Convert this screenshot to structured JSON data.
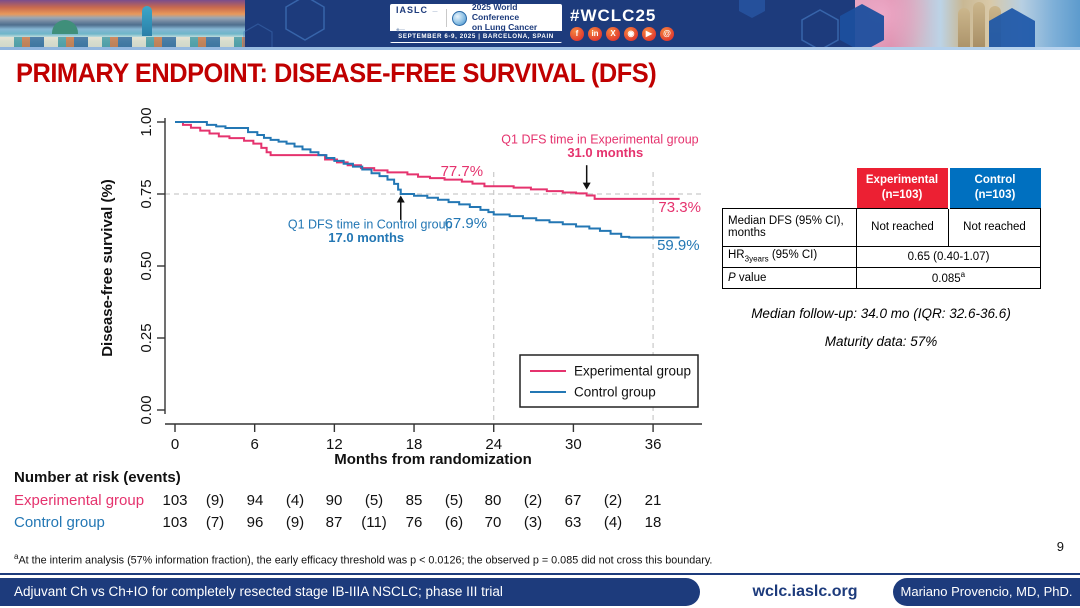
{
  "header": {
    "iaslc_logo": "IASLC",
    "conference_title_line1": "2025 World Conference",
    "conference_title_line2": "on Lung Cancer",
    "date_location": "SEPTEMBER 6-9, 2025   |   BARCELONA, SPAIN",
    "hashtag": "#WCLC25",
    "social_icons": [
      {
        "name": "facebook-icon",
        "glyph": "f"
      },
      {
        "name": "linkedin-icon",
        "glyph": "in"
      },
      {
        "name": "x-icon",
        "glyph": "X"
      },
      {
        "name": "instagram-icon",
        "glyph": "◉"
      },
      {
        "name": "youtube-icon",
        "glyph": "▶"
      },
      {
        "name": "threads-icon",
        "glyph": "@"
      }
    ]
  },
  "slide": {
    "title": "PRIMARY ENDPOINT: DISEASE-FREE SURVIVAL (DFS)",
    "page_number": "9",
    "footnote_sup": "a",
    "footnote": "At the interim analysis (57% information fraction), the early efficacy threshold was p < 0.0126; the observed p = 0.085 did not cross this boundary."
  },
  "chart_data": {
    "type": "line",
    "subtype": "kaplan-meier-step",
    "title": "",
    "xlabel": "Months from randomization",
    "ylabel": "Disease-free survival (%)",
    "xlim": [
      0,
      38.5
    ],
    "ylim": [
      0,
      1
    ],
    "x_ticks": [
      0,
      6,
      12,
      18,
      24,
      30,
      36
    ],
    "y_ticks": [
      0,
      0.25,
      0.5,
      0.75,
      1
    ],
    "y_tick_labels": [
      "0.00",
      "0.25",
      "0.50",
      "0.75",
      "1.00"
    ],
    "grid": false,
    "reference_lines": {
      "horizontal_y": 0.75,
      "vertical_x": [
        24,
        36
      ]
    },
    "legend": {
      "position": "bottom-right"
    },
    "series": [
      {
        "name": "Experimental group",
        "color": "#e5336e",
        "steps": [
          [
            0,
            1.0
          ],
          [
            0.6,
            0.99
          ],
          [
            1.2,
            0.98
          ],
          [
            1.9,
            0.97
          ],
          [
            2.6,
            0.96
          ],
          [
            3.3,
            0.95
          ],
          [
            4.1,
            0.944
          ],
          [
            5.2,
            0.935
          ],
          [
            5.9,
            0.925
          ],
          [
            6.5,
            0.91
          ],
          [
            6.9,
            0.895
          ],
          [
            7.2,
            0.885
          ],
          [
            11.3,
            0.87
          ],
          [
            12.2,
            0.86
          ],
          [
            13,
            0.85
          ],
          [
            14,
            0.84
          ],
          [
            15,
            0.832
          ],
          [
            16,
            0.825
          ],
          [
            17.5,
            0.818
          ],
          [
            18.3,
            0.81
          ],
          [
            19.2,
            0.805
          ],
          [
            20.3,
            0.8
          ],
          [
            21.6,
            0.793
          ],
          [
            22.4,
            0.786
          ],
          [
            23.3,
            0.777
          ],
          [
            25.5,
            0.772
          ],
          [
            26.8,
            0.766
          ],
          [
            28,
            0.76
          ],
          [
            29.2,
            0.755
          ],
          [
            30.2,
            0.752
          ],
          [
            31,
            0.745
          ],
          [
            31.6,
            0.733
          ],
          [
            38,
            0.733
          ]
        ]
      },
      {
        "name": "Control group",
        "color": "#2377b4",
        "steps": [
          [
            0,
            1.0
          ],
          [
            2.4,
            0.99
          ],
          [
            3.1,
            0.985
          ],
          [
            3.8,
            0.979
          ],
          [
            5.5,
            0.965
          ],
          [
            6.2,
            0.955
          ],
          [
            6.7,
            0.945
          ],
          [
            7.2,
            0.938
          ],
          [
            7.8,
            0.932
          ],
          [
            8.4,
            0.925
          ],
          [
            9,
            0.915
          ],
          [
            9.6,
            0.905
          ],
          [
            10.2,
            0.895
          ],
          [
            10.8,
            0.885
          ],
          [
            11.4,
            0.875
          ],
          [
            12,
            0.865
          ],
          [
            12.7,
            0.855
          ],
          [
            13.4,
            0.845
          ],
          [
            14.1,
            0.835
          ],
          [
            14.8,
            0.822
          ],
          [
            15.4,
            0.812
          ],
          [
            16,
            0.8
          ],
          [
            16.5,
            0.785
          ],
          [
            16.8,
            0.765
          ],
          [
            17,
            0.75
          ],
          [
            18,
            0.744
          ],
          [
            19,
            0.737
          ],
          [
            19.8,
            0.73
          ],
          [
            20.6,
            0.722
          ],
          [
            21.4,
            0.714
          ],
          [
            22.2,
            0.705
          ],
          [
            23,
            0.695
          ],
          [
            23.6,
            0.687
          ],
          [
            24,
            0.679
          ],
          [
            25.2,
            0.673
          ],
          [
            26.2,
            0.666
          ],
          [
            27.2,
            0.659
          ],
          [
            28.2,
            0.652
          ],
          [
            29.2,
            0.645
          ],
          [
            30.2,
            0.637
          ],
          [
            31.2,
            0.63
          ],
          [
            32,
            0.622
          ],
          [
            32.8,
            0.612
          ],
          [
            33.6,
            0.601
          ],
          [
            34.2,
            0.599
          ],
          [
            38,
            0.599
          ]
        ]
      }
    ],
    "labels": [
      {
        "text": "77.7%",
        "color": "#e5336e",
        "x": 21.6,
        "y": 0.8125,
        "anchor": "middle"
      },
      {
        "text": "73.3%",
        "color": "#e5336e",
        "x": 36.4,
        "y": 0.6875,
        "anchor": "start"
      },
      {
        "text": "67.9%",
        "color": "#2377b4",
        "x": 21.9,
        "y": 0.632,
        "anchor": "middle"
      },
      {
        "text": "59.9%",
        "color": "#2377b4",
        "x": 36.3,
        "y": 0.556,
        "anchor": "start"
      }
    ],
    "annotations": [
      {
        "name": "q1-experimental",
        "lines": [
          {
            "text": "Q1 DFS time in Experimental group",
            "x": 32.0,
            "y": 0.925,
            "bold": false
          },
          {
            "text": "31.0 months",
            "x": 32.4,
            "y": 0.878,
            "bold": true
          }
        ],
        "color": "#e5336e",
        "arrow_x": 31,
        "arrow_from_y": 0.85,
        "arrow_to_y": 0.765,
        "direction": "down"
      },
      {
        "name": "q1-control",
        "lines": [
          {
            "text": "Q1 DFS time in Control group",
            "x": 14.7,
            "y": 0.63,
            "bold": false
          },
          {
            "text": "17.0 months",
            "x": 14.4,
            "y": 0.583,
            "bold": true
          }
        ],
        "color": "#2377b4",
        "arrow_x": 17,
        "arrow_from_y": 0.66,
        "arrow_to_y": 0.745,
        "direction": "up"
      }
    ]
  },
  "risk_table": {
    "title": "Number at risk (events)",
    "rows": [
      {
        "label": "Experimental group",
        "color": "#e5336e",
        "values": [
          "103",
          "(9)",
          "94",
          "(4)",
          "90",
          "(5)",
          "85",
          "(5)",
          "80",
          "(2)",
          "67",
          "(2)",
          "21"
        ]
      },
      {
        "label": "Control group",
        "color": "#2377b4",
        "values": [
          "103",
          "(7)",
          "96",
          "(9)",
          "87",
          "(11)",
          "76",
          "(6)",
          "70",
          "(3)",
          "63",
          "(4)",
          "18"
        ]
      }
    ]
  },
  "results_table": {
    "col_exp_name": "Experimental",
    "col_exp_n": "(n=103)",
    "col_exp_color": "#ec2033",
    "col_ctrl_name": "Control",
    "col_ctrl_n": "(n=103)",
    "col_ctrl_color": "#0070c0",
    "median_label": "Median DFS (95% CI), months",
    "median_exp": "Not reached",
    "median_ctrl": "Not reached",
    "hr_prefix": "HR",
    "hr_sub": "3years",
    "hr_suffix": " (95% CI)",
    "hr_value": "0.65 (0.40-1.07)",
    "p_label_italic": "P",
    "p_label_rest": " value",
    "p_value": "0.085",
    "p_sup": "a"
  },
  "notes": {
    "followup": "Median follow-up: 34.0 mo (IQR: 32.6-36.6)",
    "maturity": "Maturity data: 57%"
  },
  "footer": {
    "trial": "Adjuvant Ch vs Ch+IO for completely resected stage IB-IIIA NSCLC; phase III trial",
    "website": "wclc.iaslc.org",
    "author": "Mariano Provencio, MD, PhD."
  }
}
